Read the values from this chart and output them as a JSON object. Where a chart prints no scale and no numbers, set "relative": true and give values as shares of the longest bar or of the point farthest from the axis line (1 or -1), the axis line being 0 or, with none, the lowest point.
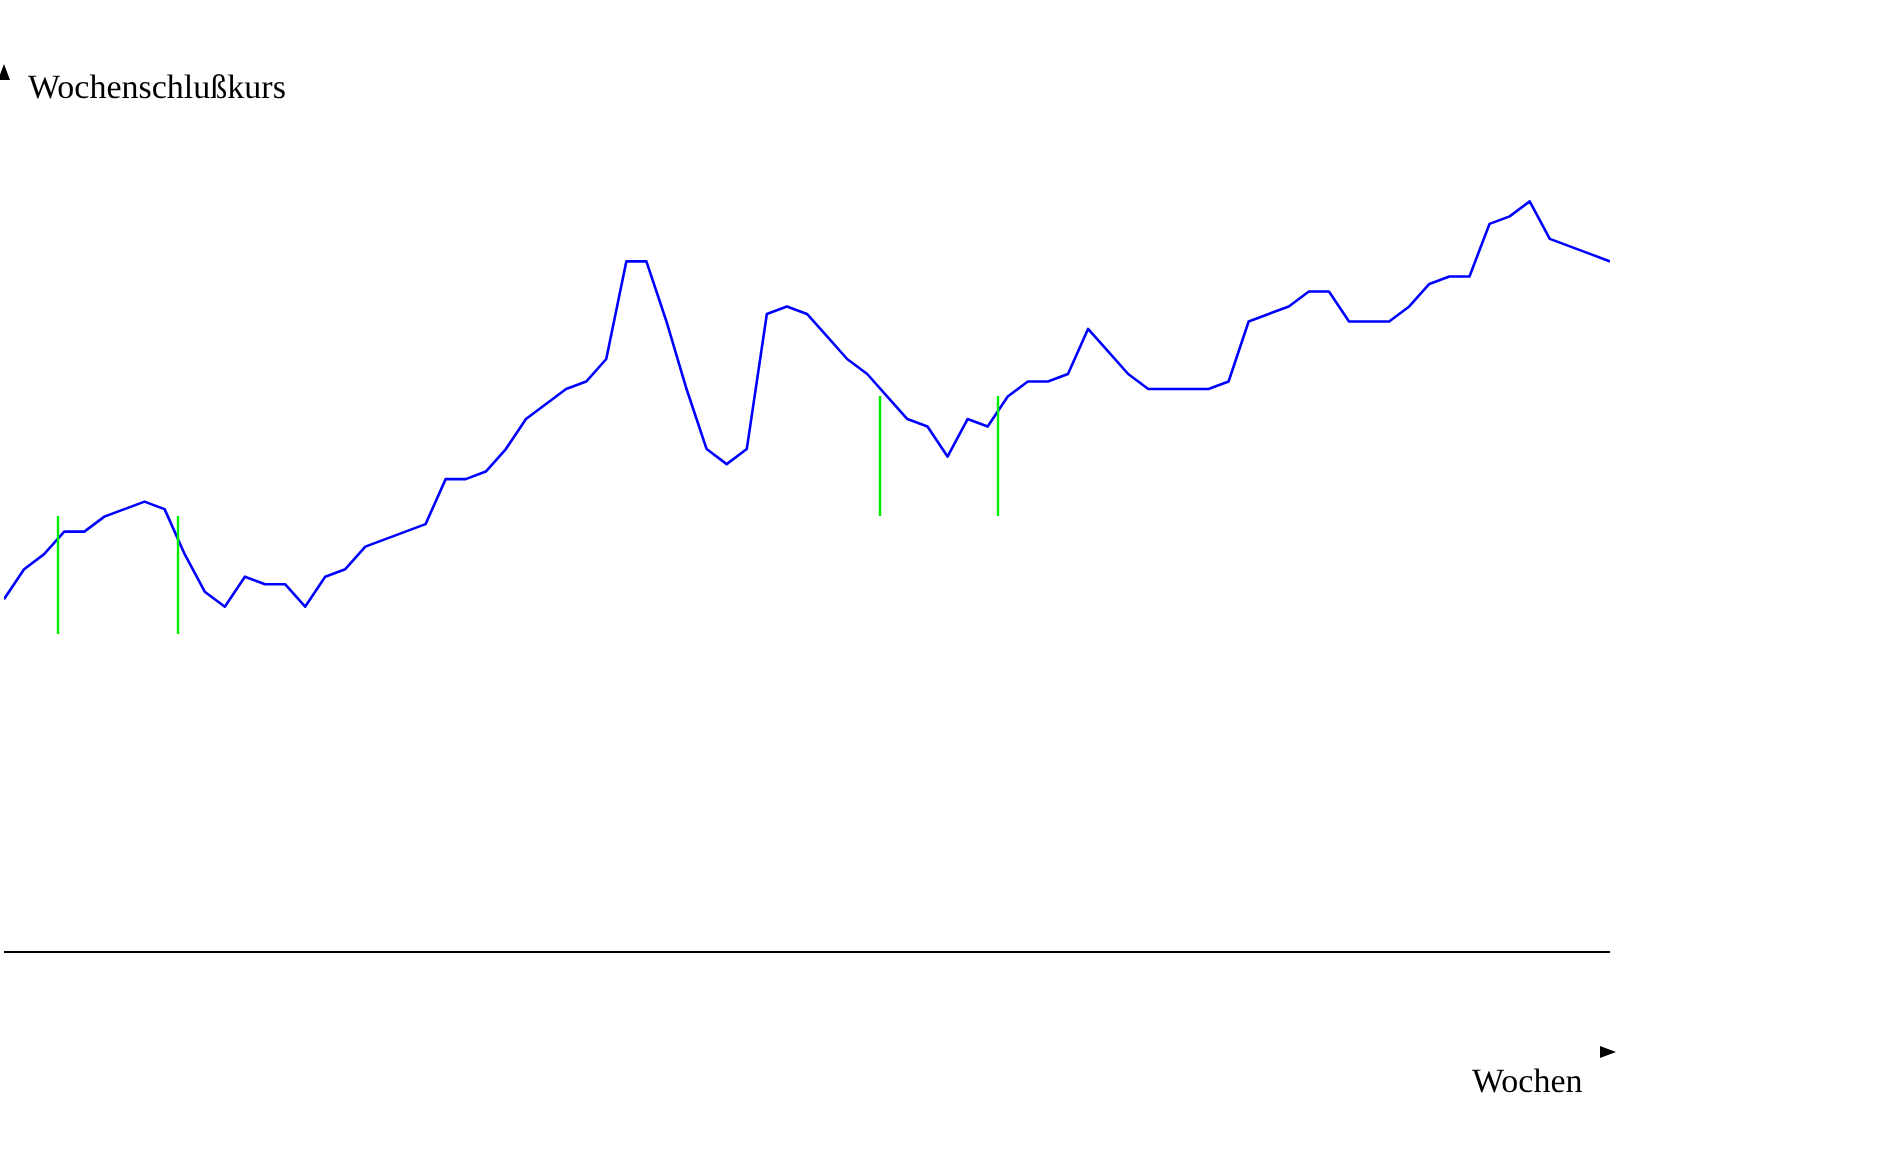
{
  "chart_data": {
    "type": "line",
    "ylabel": "Wochenschlußkurs",
    "xlabel": "Wochen",
    "relative": true,
    "grid": false,
    "legend": false,
    "marker": "none",
    "line_style": "solid",
    "categories": [
      null,
      null,
      null,
      null,
      null,
      null,
      null,
      null,
      null,
      null,
      null,
      null,
      null,
      null,
      null,
      null,
      null,
      null,
      null,
      null,
      null,
      null,
      null,
      null,
      null,
      null,
      null,
      null,
      null,
      null,
      null,
      null,
      null,
      null,
      null,
      null,
      null,
      null,
      null,
      null,
      null,
      null,
      null,
      null,
      null,
      null,
      null,
      null,
      null,
      null,
      null,
      null,
      null,
      null,
      null,
      null,
      null,
      null,
      null,
      null,
      null,
      null,
      null,
      null,
      null,
      null,
      null,
      null,
      null,
      null,
      null,
      null,
      null,
      null,
      null,
      null,
      null,
      null,
      null,
      null,
      null
    ],
    "series": [
      {
        "color": "#0000ff",
        "values": [
          0.47,
          0.51,
          0.53,
          0.56,
          0.56,
          0.58,
          0.59,
          0.6,
          0.59,
          0.53,
          0.48,
          0.46,
          0.5,
          0.49,
          0.49,
          0.46,
          0.5,
          0.51,
          0.54,
          0.55,
          0.56,
          0.57,
          0.63,
          0.63,
          0.64,
          0.67,
          0.71,
          0.73,
          0.75,
          0.76,
          0.79,
          0.92,
          0.92,
          0.84,
          0.75,
          0.67,
          0.65,
          0.67,
          0.85,
          0.86,
          0.85,
          0.82,
          0.79,
          0.77,
          0.74,
          0.71,
          0.7,
          0.66,
          0.71,
          0.7,
          0.74,
          0.76,
          0.76,
          0.77,
          0.83,
          0.8,
          0.77,
          0.75,
          0.75,
          0.75,
          0.75,
          0.76,
          0.84,
          0.85,
          0.86,
          0.88,
          0.88,
          0.84,
          0.84,
          0.84,
          0.86,
          0.89,
          0.9,
          0.9,
          0.97,
          0.98,
          1,
          0.95,
          0.94,
          0.93,
          0.92
        ]
      }
    ]
  }
}
